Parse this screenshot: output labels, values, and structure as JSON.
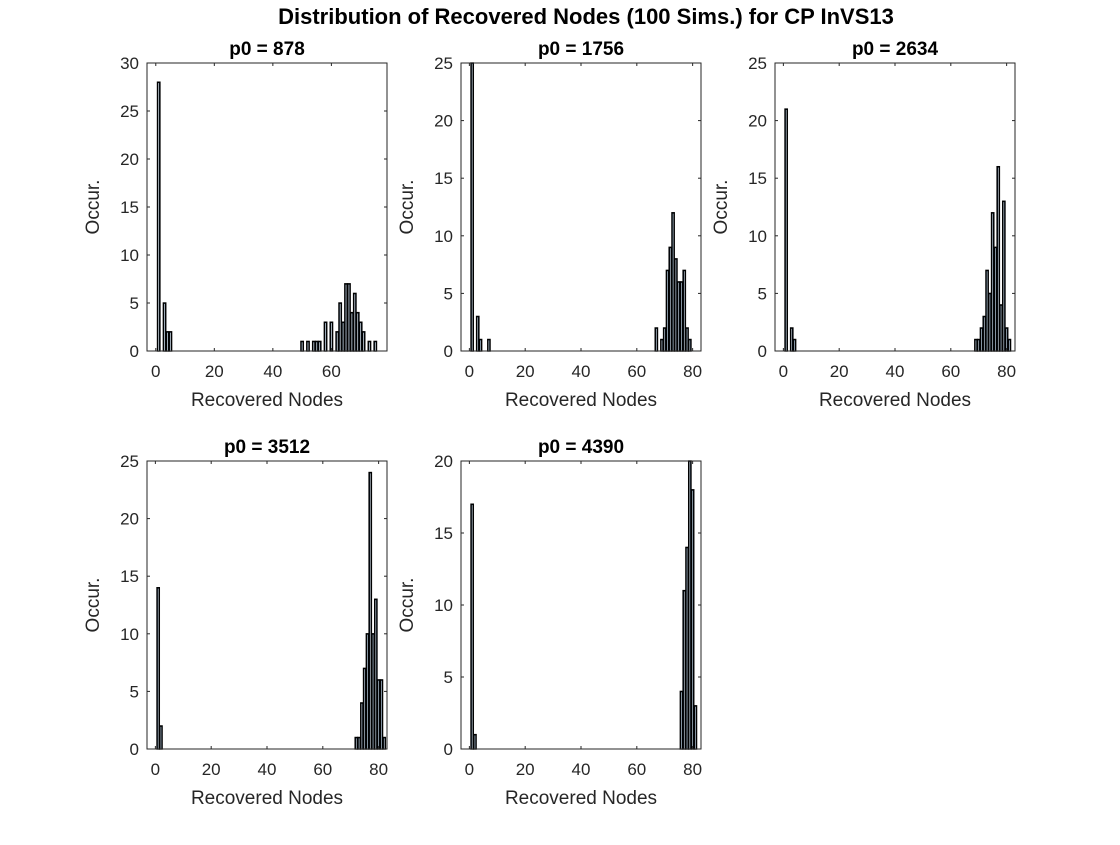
{
  "figure": {
    "title": "Distribution of Recovered Nodes (100 Sims.) for CP InVS13"
  },
  "chart_data": [
    {
      "type": "bar",
      "title": "p0 = 878",
      "xlabel": "Recovered Nodes",
      "ylabel": "Occur.",
      "xlim": [
        -3,
        79
      ],
      "ylim": [
        0,
        30
      ],
      "xticks": [
        0,
        20,
        40,
        60
      ],
      "yticks": [
        0,
        5,
        10,
        15,
        20,
        25,
        30
      ],
      "bars": [
        {
          "x": 1,
          "y": 28
        },
        {
          "x": 3,
          "y": 5
        },
        {
          "x": 4,
          "y": 2
        },
        {
          "x": 5,
          "y": 2
        },
        {
          "x": 50,
          "y": 1
        },
        {
          "x": 52,
          "y": 1
        },
        {
          "x": 54,
          "y": 1
        },
        {
          "x": 55,
          "y": 1
        },
        {
          "x": 56,
          "y": 1
        },
        {
          "x": 58,
          "y": 3
        },
        {
          "x": 60,
          "y": 3
        },
        {
          "x": 62,
          "y": 2
        },
        {
          "x": 63,
          "y": 5
        },
        {
          "x": 64,
          "y": 3
        },
        {
          "x": 65,
          "y": 7
        },
        {
          "x": 66,
          "y": 7
        },
        {
          "x": 67,
          "y": 4
        },
        {
          "x": 68,
          "y": 6
        },
        {
          "x": 69,
          "y": 4
        },
        {
          "x": 70,
          "y": 3
        },
        {
          "x": 71,
          "y": 2
        },
        {
          "x": 73,
          "y": 1
        },
        {
          "x": 75,
          "y": 1
        }
      ]
    },
    {
      "type": "bar",
      "title": "p0 = 1756",
      "xlabel": "Recovered Nodes",
      "ylabel": "Occur.",
      "xlim": [
        -3,
        83
      ],
      "ylim": [
        0,
        25
      ],
      "xticks": [
        0,
        20,
        40,
        60,
        80
      ],
      "yticks": [
        0,
        5,
        10,
        15,
        20,
        25
      ],
      "bars": [
        {
          "x": 1,
          "y": 25
        },
        {
          "x": 3,
          "y": 3
        },
        {
          "x": 4,
          "y": 1
        },
        {
          "x": 7,
          "y": 1
        },
        {
          "x": 67,
          "y": 2
        },
        {
          "x": 69,
          "y": 1
        },
        {
          "x": 70,
          "y": 2
        },
        {
          "x": 71,
          "y": 7
        },
        {
          "x": 72,
          "y": 9
        },
        {
          "x": 73,
          "y": 12
        },
        {
          "x": 74,
          "y": 8
        },
        {
          "x": 75,
          "y": 6
        },
        {
          "x": 76,
          "y": 6
        },
        {
          "x": 77,
          "y": 7
        },
        {
          "x": 78,
          "y": 2
        },
        {
          "x": 79,
          "y": 1
        }
      ]
    },
    {
      "type": "bar",
      "title": "p0 = 2634",
      "xlabel": "Recovered Nodes",
      "ylabel": "Occur.",
      "xlim": [
        -3,
        83
      ],
      "ylim": [
        0,
        25
      ],
      "xticks": [
        0,
        20,
        40,
        60,
        80
      ],
      "yticks": [
        0,
        5,
        10,
        15,
        20,
        25
      ],
      "bars": [
        {
          "x": 1,
          "y": 21
        },
        {
          "x": 3,
          "y": 2
        },
        {
          "x": 4,
          "y": 1
        },
        {
          "x": 69,
          "y": 1
        },
        {
          "x": 70,
          "y": 1
        },
        {
          "x": 71,
          "y": 2
        },
        {
          "x": 72,
          "y": 3
        },
        {
          "x": 73,
          "y": 7
        },
        {
          "x": 74,
          "y": 5
        },
        {
          "x": 75,
          "y": 12
        },
        {
          "x": 76,
          "y": 9
        },
        {
          "x": 77,
          "y": 16
        },
        {
          "x": 78,
          "y": 4
        },
        {
          "x": 79,
          "y": 13
        },
        {
          "x": 80,
          "y": 2
        },
        {
          "x": 81,
          "y": 1
        }
      ]
    },
    {
      "type": "bar",
      "title": "p0 = 3512",
      "xlabel": "Recovered Nodes",
      "ylabel": "Occur.",
      "xlim": [
        -3,
        83
      ],
      "ylim": [
        0,
        25
      ],
      "xticks": [
        0,
        20,
        40,
        60,
        80
      ],
      "yticks": [
        0,
        5,
        10,
        15,
        20,
        25
      ],
      "bars": [
        {
          "x": 1,
          "y": 14
        },
        {
          "x": 2,
          "y": 2
        },
        {
          "x": 72,
          "y": 1
        },
        {
          "x": 73,
          "y": 1
        },
        {
          "x": 74,
          "y": 4
        },
        {
          "x": 75,
          "y": 7
        },
        {
          "x": 76,
          "y": 10
        },
        {
          "x": 77,
          "y": 24
        },
        {
          "x": 78,
          "y": 10
        },
        {
          "x": 79,
          "y": 13
        },
        {
          "x": 80,
          "y": 6
        },
        {
          "x": 81,
          "y": 6
        },
        {
          "x": 82,
          "y": 1
        }
      ]
    },
    {
      "type": "bar",
      "title": "p0 = 4390",
      "xlabel": "Recovered Nodes",
      "ylabel": "Occur.",
      "xlim": [
        -3,
        83
      ],
      "ylim": [
        0,
        20
      ],
      "xticks": [
        0,
        20,
        40,
        60,
        80
      ],
      "yticks": [
        0,
        5,
        10,
        15,
        20
      ],
      "bars": [
        {
          "x": 1,
          "y": 17
        },
        {
          "x": 2,
          "y": 1
        },
        {
          "x": 76,
          "y": 4
        },
        {
          "x": 77,
          "y": 11
        },
        {
          "x": 78,
          "y": 14
        },
        {
          "x": 79,
          "y": 20
        },
        {
          "x": 80,
          "y": 18
        },
        {
          "x": 81,
          "y": 3
        }
      ]
    }
  ]
}
